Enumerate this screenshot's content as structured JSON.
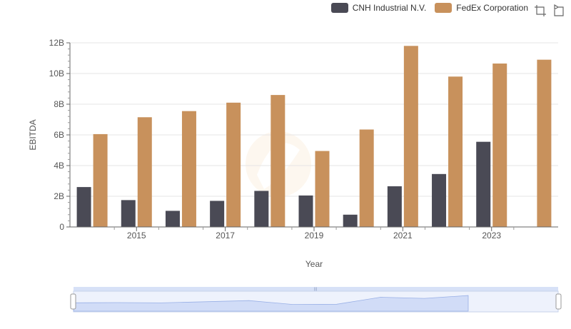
{
  "legend": {
    "items": [
      {
        "label": "CNH Industrial N.V.",
        "color": "#4a4a55"
      },
      {
        "label": "FedEx Corporation",
        "color": "#c8915c"
      }
    ]
  },
  "toolbox": {
    "icons": [
      "zoom-icon",
      "restore-icon"
    ]
  },
  "chart_data": {
    "type": "bar",
    "xlabel": "Year",
    "ylabel": "EBITDA",
    "categories": [
      "2014",
      "2015",
      "2016",
      "2017",
      "2018",
      "2019",
      "2020",
      "2021",
      "2022",
      "2023",
      "2024"
    ],
    "x_tick_labels": [
      "2015",
      "2017",
      "2019",
      "2021",
      "2023"
    ],
    "y_tick_labels": [
      "0",
      "2B",
      "4B",
      "6B",
      "8B",
      "10B",
      "12B"
    ],
    "ylim": [
      0,
      12
    ],
    "y_unit": "B",
    "grid": true,
    "legend_position": "top-right",
    "series": [
      {
        "name": "CNH Industrial N.V.",
        "color": "#4a4a55",
        "values": [
          2.6,
          1.75,
          1.05,
          1.7,
          2.35,
          2.05,
          0.8,
          2.65,
          3.45,
          5.55,
          null
        ]
      },
      {
        "name": "FedEx Corporation",
        "color": "#c8915c",
        "values": [
          6.05,
          7.15,
          7.55,
          8.1,
          8.6,
          4.95,
          6.35,
          11.8,
          9.8,
          10.65,
          10.9
        ]
      }
    ]
  }
}
